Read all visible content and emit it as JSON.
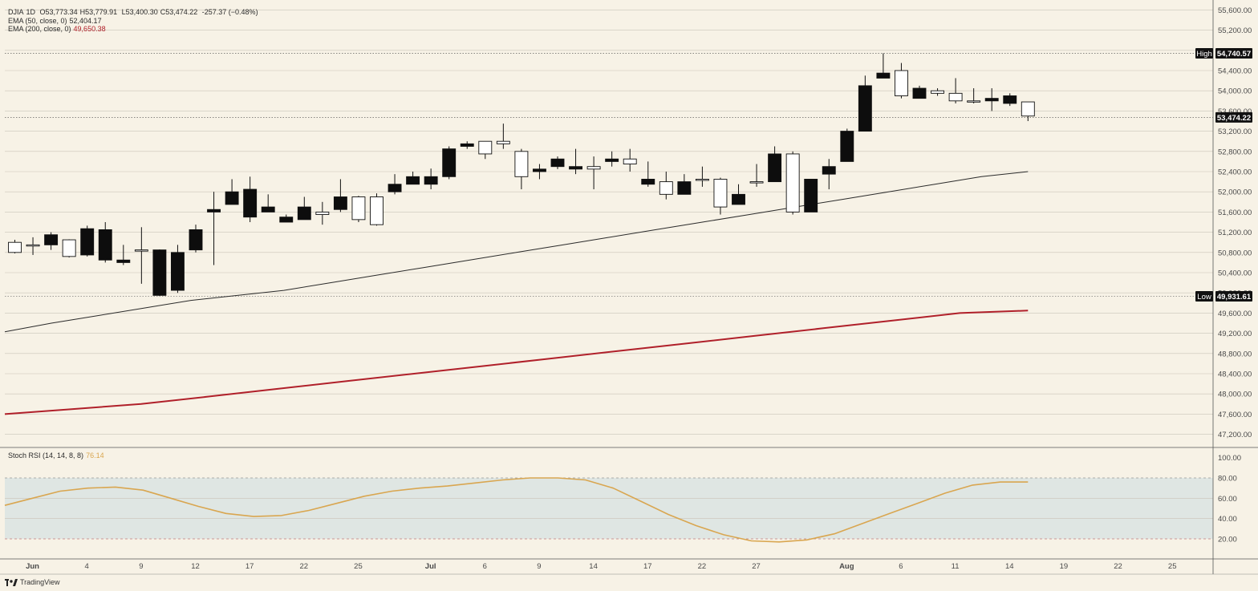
{
  "header": {
    "symbol": "DJIA",
    "interval": "1D",
    "open": "O53,773.34",
    "high": "H53,779.91",
    "low": "L53,400.30",
    "close": "C53,474.22",
    "change": "-257.37 (−0.48%)"
  },
  "indicators": {
    "ema50": {
      "label": "EMA (50, close, 0)",
      "value": "52,404.17",
      "color": "#2b2b2b"
    },
    "ema200": {
      "label": "EMA (200, close, 0)",
      "value": "49,650.38",
      "color": "#b0202a"
    },
    "stoch": {
      "label": "Stoch RSI (14, 14, 8, 8)",
      "value": "76.14",
      "color": "#d9a650"
    }
  },
  "markers": {
    "high": {
      "label": "High",
      "value": "54,740.57"
    },
    "low": {
      "label": "Low",
      "value": "49,931.61"
    },
    "last": {
      "value": "53,474.22"
    }
  },
  "brand": {
    "name": "TradingView"
  },
  "chart_data": {
    "type": "candlestick",
    "price_ticks": [
      "55,600.00",
      "55,200.00",
      "54,800.00",
      "54,400.00",
      "54,000.00",
      "53,600.00",
      "53,200.00",
      "52,800.00",
      "52,400.00",
      "52,000.00",
      "51,600.00",
      "51,200.00",
      "50,800.00",
      "50,400.00",
      "50,000.00",
      "49,600.00",
      "49,200.00",
      "48,800.00",
      "48,400.00",
      "48,000.00",
      "47,600.00",
      "47,200.00"
    ],
    "price_tick_values": [
      55600,
      55200,
      54800,
      54400,
      54000,
      53600,
      53200,
      52800,
      52400,
      52000,
      51600,
      51200,
      50800,
      50400,
      50000,
      49600,
      49200,
      48800,
      48400,
      48000,
      47600,
      47200
    ],
    "stoch_ticks": [
      "100.00",
      "80.00",
      "60.00",
      "40.00",
      "20.00"
    ],
    "stoch_tick_values": [
      100,
      80,
      60,
      40,
      20
    ],
    "x_labels": [
      {
        "t": "Jun",
        "i": 1
      },
      {
        "t": "4",
        "i": 4
      },
      {
        "t": "9",
        "i": 7
      },
      {
        "t": "12",
        "i": 10
      },
      {
        "t": "17",
        "i": 13
      },
      {
        "t": "22",
        "i": 16
      },
      {
        "t": "25",
        "i": 19
      },
      {
        "t": "Jul",
        "i": 23
      },
      {
        "t": "6",
        "i": 26
      },
      {
        "t": "9",
        "i": 29
      },
      {
        "t": "14",
        "i": 32
      },
      {
        "t": "17",
        "i": 35
      },
      {
        "t": "22",
        "i": 38
      },
      {
        "t": "27",
        "i": 41
      },
      {
        "t": "Aug",
        "i": 46
      },
      {
        "t": "6",
        "i": 49
      },
      {
        "t": "11",
        "i": 52
      },
      {
        "t": "14",
        "i": 55
      },
      {
        "t": "19",
        "i": 58
      },
      {
        "t": "22",
        "i": 61
      },
      {
        "t": "25",
        "i": 64
      }
    ],
    "candles": [
      [
        50800,
        51050,
        50780,
        51000
      ],
      [
        50950,
        51100,
        50750,
        50950
      ],
      [
        51150,
        51200,
        50850,
        50950
      ],
      [
        50720,
        51060,
        50700,
        51050
      ],
      [
        51270,
        51330,
        50720,
        50750
      ],
      [
        51250,
        51400,
        50600,
        50650
      ],
      [
        50650,
        50950,
        50550,
        50600
      ],
      [
        50850,
        51300,
        50180,
        50850
      ],
      [
        50850,
        50860,
        49940,
        49950
      ],
      [
        50800,
        50950,
        50000,
        50050
      ],
      [
        51250,
        51350,
        50800,
        50850
      ],
      [
        51650,
        52000,
        50550,
        51600
      ],
      [
        52000,
        52250,
        51750,
        51750
      ],
      [
        52050,
        52300,
        51400,
        51500
      ],
      [
        51700,
        51950,
        51600,
        51600
      ],
      [
        51500,
        51550,
        51400,
        51400
      ],
      [
        51700,
        51900,
        51450,
        51450
      ],
      [
        51550,
        51800,
        51350,
        51600
      ],
      [
        51900,
        52250,
        51600,
        51650
      ],
      [
        51450,
        51920,
        51400,
        51900
      ],
      [
        51350,
        51970,
        51330,
        51900
      ],
      [
        52150,
        52350,
        51950,
        52000
      ],
      [
        52300,
        52400,
        52150,
        52150
      ],
      [
        52300,
        52460,
        52050,
        52150
      ],
      [
        52850,
        52900,
        52250,
        52300
      ],
      [
        52950,
        53000,
        52850,
        52900
      ],
      [
        52750,
        53000,
        52650,
        53000
      ],
      [
        52950,
        53350,
        52850,
        53000
      ],
      [
        52300,
        52850,
        52050,
        52800
      ],
      [
        52450,
        52550,
        52250,
        52400
      ],
      [
        52650,
        52700,
        52450,
        52500
      ],
      [
        52500,
        52850,
        52350,
        52450
      ],
      [
        52450,
        52700,
        52050,
        52500
      ],
      [
        52650,
        52800,
        52500,
        52600
      ],
      [
        52550,
        52850,
        52400,
        52650
      ],
      [
        52250,
        52600,
        52100,
        52150
      ],
      [
        51950,
        52400,
        51850,
        52200
      ],
      [
        52200,
        52350,
        51950,
        51950
      ],
      [
        52250,
        52500,
        52100,
        52250
      ],
      [
        51700,
        52280,
        51550,
        52250
      ],
      [
        51950,
        52150,
        51750,
        51750
      ],
      [
        52200,
        52550,
        52100,
        52200
      ],
      [
        52750,
        52900,
        52200,
        52200
      ],
      [
        51600,
        52800,
        51550,
        52750
      ],
      [
        52250,
        52250,
        51600,
        51600
      ],
      [
        52500,
        52650,
        52050,
        52350
      ],
      [
        53200,
        53250,
        52600,
        52600
      ],
      [
        54100,
        54300,
        53200,
        53200
      ],
      [
        54350,
        54740,
        54250,
        54250
      ],
      [
        53900,
        54550,
        53850,
        54400
      ],
      [
        54050,
        54100,
        53850,
        53850
      ],
      [
        53950,
        54050,
        53900,
        54000
      ],
      [
        53800,
        54250,
        53750,
        53950
      ],
      [
        53800,
        54050,
        53750,
        53800
      ],
      [
        53850,
        54050,
        53600,
        53800
      ],
      [
        53900,
        53950,
        53700,
        53750
      ],
      [
        53500,
        53780,
        53400,
        53780
      ]
    ],
    "ema50": [
      49230,
      49400,
      49550,
      49700,
      49850,
      49950,
      50050,
      50200,
      50350,
      50500,
      50650,
      50800,
      50950,
      51100,
      51250,
      51400,
      51550,
      51700,
      51850,
      52000,
      52150,
      52300,
      52400
    ],
    "ema200": [
      47600,
      47700,
      47800,
      47950,
      48100,
      48250,
      48400,
      48550,
      48700,
      48850,
      49000,
      49150,
      49300,
      49450,
      49600,
      49650
    ],
    "stoch": [
      53,
      60,
      67,
      70,
      71,
      68,
      60,
      52,
      45,
      42,
      43,
      48,
      55,
      62,
      67,
      70,
      72,
      75,
      78,
      80,
      80,
      78,
      70,
      57,
      44,
      33,
      24,
      18,
      17,
      19,
      25,
      35,
      45,
      55,
      65,
      73,
      76,
      76
    ],
    "stoch_band": [
      20,
      80
    ]
  }
}
